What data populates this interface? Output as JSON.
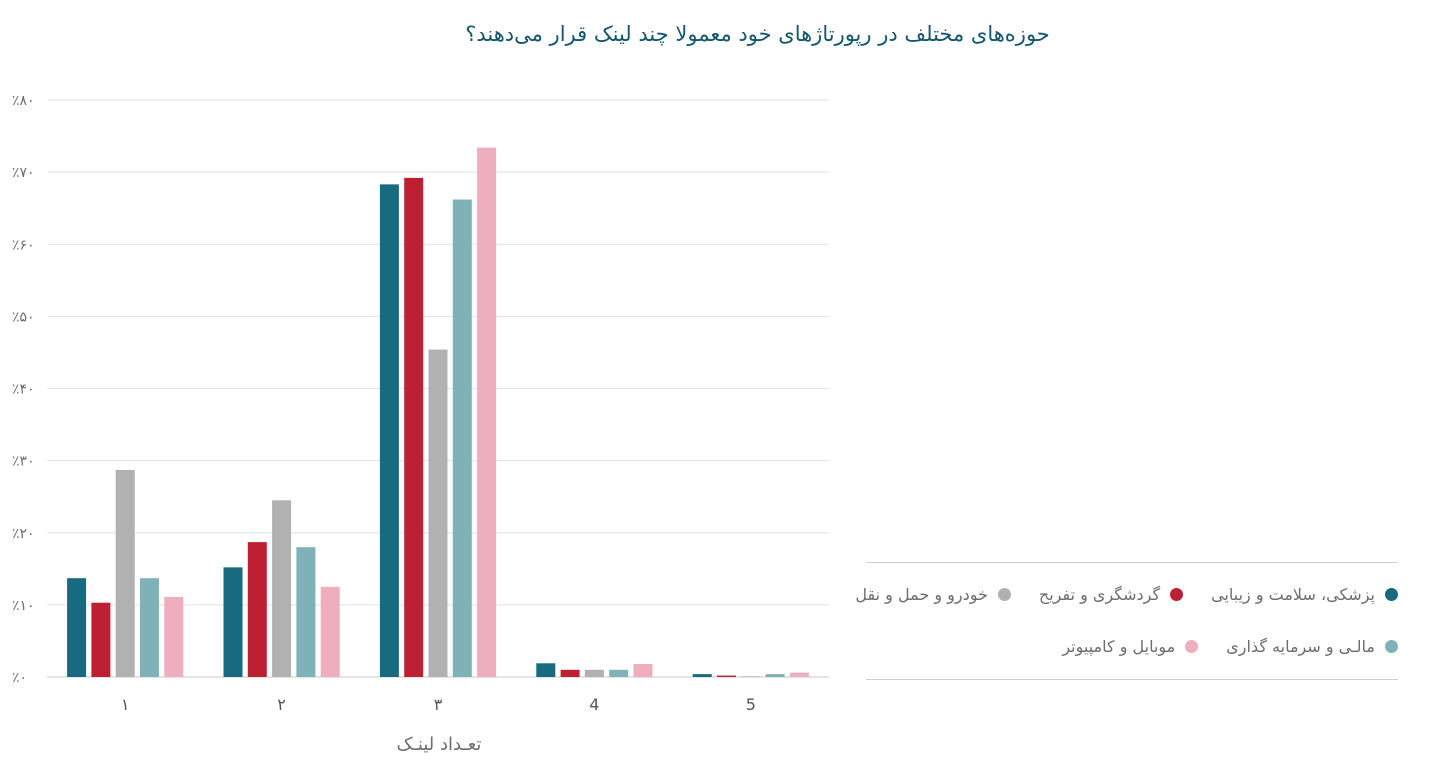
{
  "chart_data": {
    "type": "bar",
    "title": "حوزه‌های مختلف در رپورتاژهای خود معمولا چند لینک قرار می‌دهند؟",
    "xlabel": "تعـداد لینـک",
    "ylabel": "",
    "categories": [
      "۱",
      "۲",
      "۳",
      "4",
      "5"
    ],
    "y_ticks": [
      "٪۰",
      "٪۱۰",
      "٪۲۰",
      "٪۳۰",
      "٪۴۰",
      "٪۵۰",
      "٪۶۰",
      "٪۷۰",
      "٪۸۰"
    ],
    "ylim": [
      0,
      80
    ],
    "grid": true,
    "legend_position": "right",
    "series": [
      {
        "name": "پزشکی، سلامت و زیبایی",
        "color": "#186a80",
        "values": [
          13.7,
          15.2,
          68.3,
          1.9,
          0.4
        ]
      },
      {
        "name": "گردشگری و تفریح",
        "color": "#be2033",
        "values": [
          10.3,
          18.7,
          69.2,
          1.0,
          0.2
        ]
      },
      {
        "name": "خودرو و حمل و نقل",
        "color": "#b1b1b1",
        "values": [
          28.7,
          24.5,
          45.4,
          1.0,
          0.1
        ]
      },
      {
        "name": "مالـی و سرمایه گذاری",
        "color": "#7eb1b8",
        "values": [
          13.7,
          18.0,
          66.2,
          1.0,
          0.4
        ]
      },
      {
        "name": "موبایل و کامپیوتر",
        "color": "#efaebd",
        "values": [
          11.1,
          12.5,
          73.4,
          1.8,
          0.6
        ]
      }
    ]
  }
}
